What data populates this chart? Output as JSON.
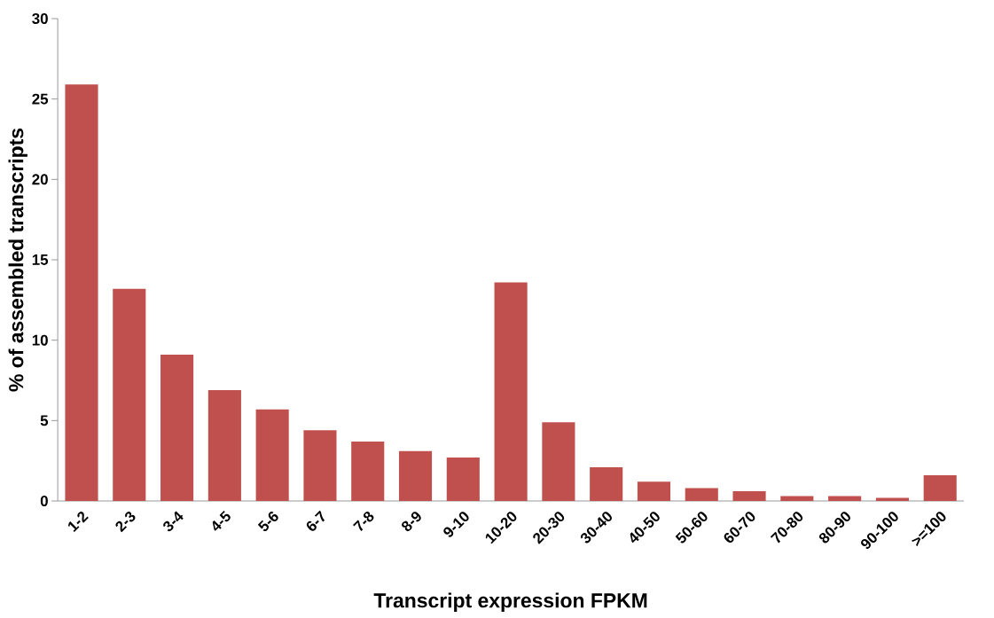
{
  "chart_data": {
    "type": "bar",
    "xlabel": "Transcript expression FPKM",
    "ylabel": "% of assembled transcripts",
    "categories": [
      "1-2",
      "2-3",
      "3-4",
      "4-5",
      "5-6",
      "6-7",
      "7-8",
      "8-9",
      "9-10",
      "10-20",
      "20-30",
      "30-40",
      "40-50",
      "50-60",
      "60-70",
      "70-80",
      "80-90",
      "90-100",
      ">=100"
    ],
    "values": [
      25.9,
      13.2,
      9.1,
      6.9,
      5.7,
      4.4,
      3.7,
      3.1,
      2.7,
      13.6,
      4.9,
      2.1,
      1.2,
      0.8,
      0.6,
      0.3,
      0.3,
      0.2,
      1.6
    ],
    "color": "#c0504d",
    "ylim": [
      0,
      30
    ],
    "yticks": [
      0,
      5,
      10,
      15,
      20,
      25,
      30
    ],
    "grid": false
  }
}
